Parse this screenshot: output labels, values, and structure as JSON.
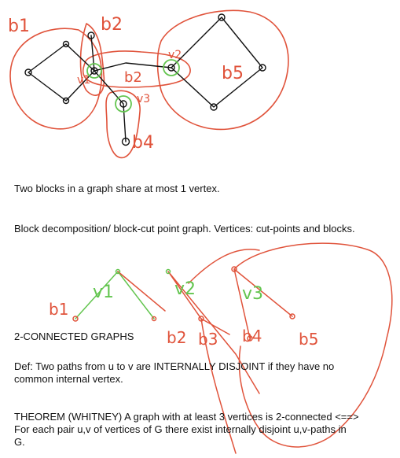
{
  "colors": {
    "red_ink": "#e0533b",
    "green_ink": "#63c54f",
    "black_ink": "#111111",
    "text": "#111111",
    "background": "#ffffff"
  },
  "top_diagram": {
    "block_labels": [
      "b1",
      "b2",
      "b2",
      "b5",
      "b4"
    ],
    "cut_vertex_labels": [
      "v1",
      "v2",
      "v3"
    ]
  },
  "lower_diagram": {
    "block_labels": [
      "b1",
      "b2",
      "b3",
      "b4",
      "b5"
    ],
    "cut_vertex_labels": [
      "v1",
      "v2",
      "v3"
    ]
  },
  "notes": {
    "blocks_share": "Two blocks in a graph share at most 1 vertex.",
    "block_decomposition": "Block decomposition/ block-cut point graph. Vertices: cut-points and blocks.",
    "section_title": "2-CONNECTED GRAPHS",
    "definition": "Def: Two paths from u to v are INTERNALLY DISJOINT if they have no common internal vertex.",
    "theorem": "THEOREM (WHITNEY) A graph with at least 3 vertices is 2-connected <==> For each pair u,v of vertices of G there exist internally disjoint u,v-paths in G."
  }
}
